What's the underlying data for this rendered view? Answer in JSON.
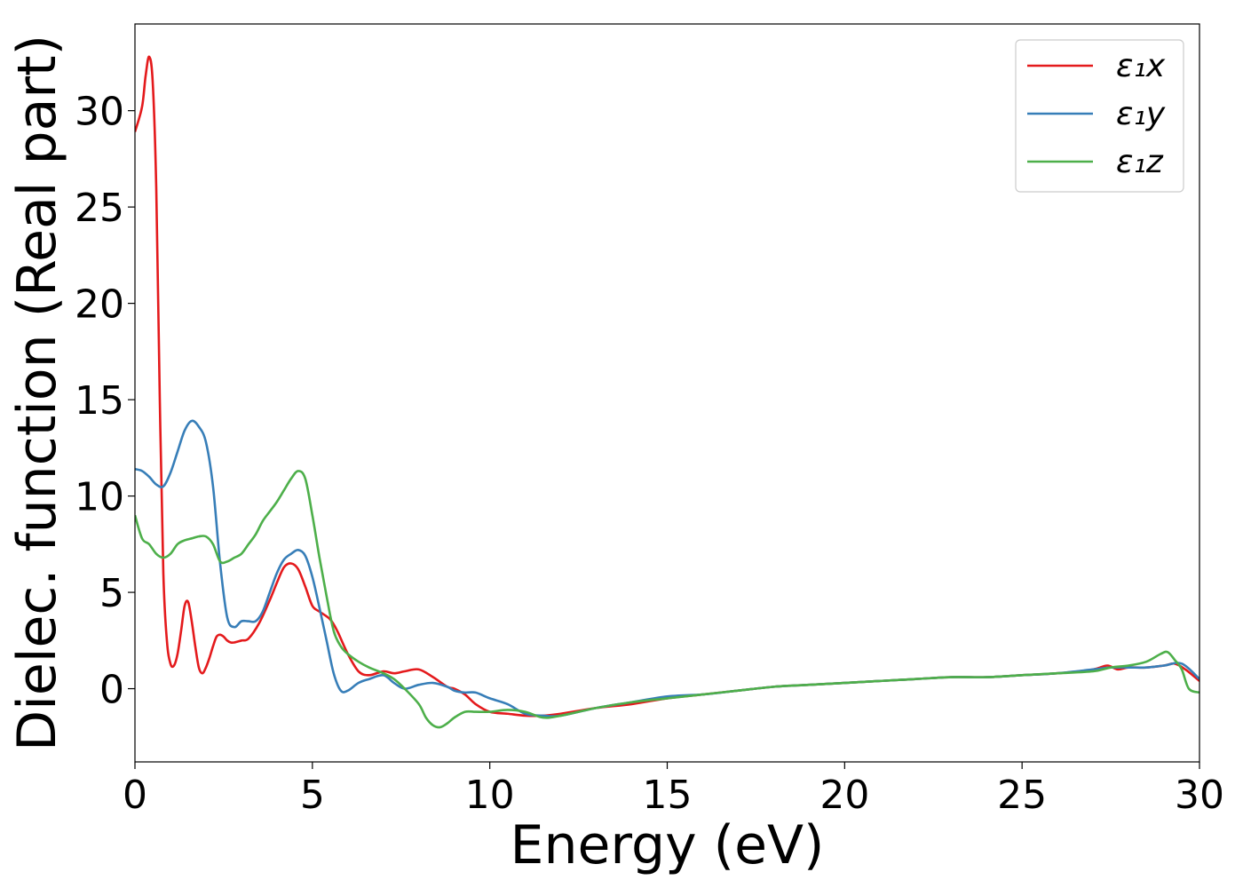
{
  "chart_data": {
    "type": "line",
    "title": "",
    "xlabel": "Energy (eV)",
    "ylabel": "Dielec. function (Real part)",
    "xlim": [
      0,
      30
    ],
    "ylim": [
      -3.8,
      34.5
    ],
    "xticks": [
      0,
      5,
      10,
      15,
      20,
      25,
      30
    ],
    "yticks": [
      0,
      5,
      10,
      15,
      20,
      25,
      30
    ],
    "grid": false,
    "legend_position": "top-right",
    "series": [
      {
        "name": "ε₁x",
        "color": "#e41a1c",
        "x": [
          0,
          0.2,
          0.3,
          0.4,
          0.5,
          0.6,
          0.7,
          0.8,
          0.9,
          1.0,
          1.1,
          1.2,
          1.3,
          1.4,
          1.5,
          1.6,
          1.7,
          1.8,
          1.9,
          2.0,
          2.1,
          2.2,
          2.3,
          2.4,
          2.5,
          2.6,
          2.7,
          2.8,
          3.0,
          3.2,
          3.5,
          3.8,
          4.0,
          4.2,
          4.4,
          4.6,
          4.8,
          5.0,
          5.2,
          5.5,
          5.7,
          6.0,
          6.3,
          6.6,
          7.0,
          7.3,
          7.6,
          8.0,
          8.4,
          8.8,
          9.0,
          9.3,
          9.6,
          10.0,
          10.5,
          11.0,
          11.5,
          12.0,
          13.0,
          14.0,
          15.0,
          16.0,
          17.0,
          18.0,
          19.0,
          20.0,
          21.0,
          22.0,
          23.0,
          24.0,
          25.0,
          26.0,
          27.0,
          27.4,
          27.7,
          28.0,
          28.5,
          29.0,
          29.3,
          29.6,
          30.0
        ],
        "y": [
          28.9,
          30.2,
          31.8,
          32.8,
          31.5,
          26.0,
          15.0,
          6.0,
          2.5,
          1.3,
          1.2,
          1.8,
          3.0,
          4.3,
          4.5,
          3.5,
          2.2,
          1.1,
          0.8,
          1.1,
          1.6,
          2.2,
          2.7,
          2.8,
          2.7,
          2.5,
          2.4,
          2.4,
          2.5,
          2.6,
          3.4,
          4.6,
          5.5,
          6.3,
          6.5,
          6.2,
          5.3,
          4.3,
          4.0,
          3.6,
          3.0,
          1.8,
          0.9,
          0.7,
          0.9,
          0.8,
          0.9,
          1.0,
          0.6,
          0.1,
          0.0,
          -0.3,
          -0.8,
          -1.2,
          -1.3,
          -1.4,
          -1.4,
          -1.3,
          -1.0,
          -0.8,
          -0.5,
          -0.3,
          -0.1,
          0.1,
          0.2,
          0.3,
          0.4,
          0.5,
          0.6,
          0.6,
          0.7,
          0.8,
          1.0,
          1.2,
          1.0,
          1.1,
          1.1,
          1.2,
          1.3,
          1.0,
          0.4
        ]
      },
      {
        "name": "ε₁y",
        "color": "#377eb8",
        "x": [
          0,
          0.2,
          0.4,
          0.6,
          0.8,
          1.0,
          1.2,
          1.4,
          1.6,
          1.8,
          2.0,
          2.2,
          2.4,
          2.6,
          2.8,
          3.0,
          3.2,
          3.4,
          3.6,
          3.8,
          4.0,
          4.2,
          4.4,
          4.6,
          4.8,
          5.0,
          5.2,
          5.4,
          5.6,
          5.8,
          6.0,
          6.3,
          6.6,
          7.0,
          7.3,
          7.6,
          8.0,
          8.4,
          8.8,
          9.0,
          9.3,
          9.6,
          10.0,
          10.5,
          11.0,
          11.5,
          12.0,
          13.0,
          14.0,
          15.0,
          16.0,
          17.0,
          18.0,
          19.0,
          20.0,
          21.0,
          22.0,
          23.0,
          24.0,
          25.0,
          26.0,
          27.0,
          27.5,
          28.0,
          28.5,
          29.0,
          29.5,
          30.0
        ],
        "y": [
          11.4,
          11.3,
          11.0,
          10.6,
          10.5,
          11.2,
          12.3,
          13.4,
          13.9,
          13.6,
          12.8,
          10.5,
          6.5,
          3.7,
          3.2,
          3.5,
          3.5,
          3.5,
          4.0,
          5.0,
          6.0,
          6.7,
          7.0,
          7.2,
          6.9,
          5.8,
          4.2,
          2.5,
          0.8,
          -0.1,
          -0.1,
          0.3,
          0.5,
          0.7,
          0.3,
          0.0,
          0.2,
          0.3,
          0.1,
          -0.1,
          -0.2,
          -0.2,
          -0.5,
          -0.8,
          -1.3,
          -1.4,
          -1.4,
          -1.0,
          -0.7,
          -0.4,
          -0.3,
          -0.1,
          0.1,
          0.2,
          0.3,
          0.4,
          0.5,
          0.6,
          0.6,
          0.7,
          0.8,
          1.0,
          1.1,
          1.1,
          1.1,
          1.2,
          1.3,
          0.5
        ]
      },
      {
        "name": "ε₁z",
        "color": "#4daf4a",
        "x": [
          0,
          0.2,
          0.4,
          0.6,
          0.8,
          1.0,
          1.2,
          1.4,
          1.6,
          1.8,
          2.0,
          2.2,
          2.4,
          2.6,
          2.8,
          3.0,
          3.2,
          3.4,
          3.6,
          3.8,
          4.0,
          4.2,
          4.4,
          4.6,
          4.8,
          5.0,
          5.2,
          5.4,
          5.6,
          5.8,
          6.0,
          6.3,
          6.6,
          7.0,
          7.3,
          7.6,
          8.0,
          8.2,
          8.4,
          8.6,
          8.8,
          9.0,
          9.3,
          9.6,
          10.0,
          10.5,
          11.0,
          11.5,
          12.0,
          13.0,
          14.0,
          15.0,
          16.0,
          17.0,
          18.0,
          19.0,
          20.0,
          21.0,
          22.0,
          23.0,
          24.0,
          25.0,
          26.0,
          27.0,
          27.5,
          28.0,
          28.5,
          28.9,
          29.1,
          29.3,
          29.5,
          29.7,
          30.0
        ],
        "y": [
          9.0,
          7.8,
          7.5,
          7.0,
          6.8,
          7.0,
          7.5,
          7.7,
          7.8,
          7.9,
          7.9,
          7.5,
          6.6,
          6.6,
          6.8,
          7.0,
          7.5,
          8.0,
          8.7,
          9.2,
          9.7,
          10.3,
          10.9,
          11.3,
          10.9,
          9.0,
          6.8,
          4.8,
          3.0,
          2.2,
          1.8,
          1.4,
          1.1,
          0.8,
          0.5,
          0.0,
          -0.8,
          -1.5,
          -1.9,
          -2.0,
          -1.8,
          -1.5,
          -1.2,
          -1.2,
          -1.2,
          -1.1,
          -1.2,
          -1.5,
          -1.4,
          -1.0,
          -0.7,
          -0.5,
          -0.3,
          -0.1,
          0.1,
          0.2,
          0.3,
          0.4,
          0.5,
          0.6,
          0.6,
          0.7,
          0.8,
          0.9,
          1.1,
          1.2,
          1.4,
          1.8,
          1.9,
          1.5,
          1.0,
          0.0,
          -0.2
        ]
      }
    ]
  }
}
